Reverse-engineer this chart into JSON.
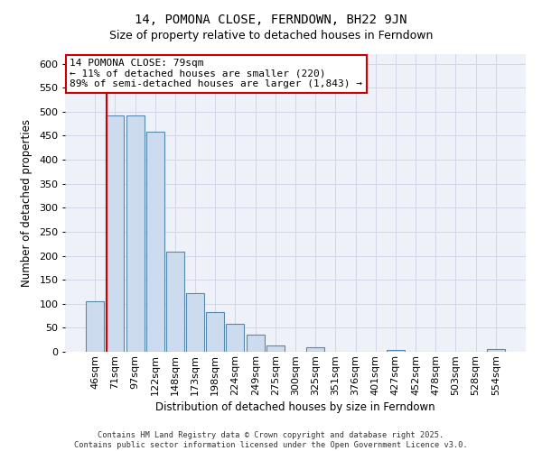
{
  "title": "14, POMONA CLOSE, FERNDOWN, BH22 9JN",
  "subtitle": "Size of property relative to detached houses in Ferndown",
  "xlabel": "Distribution of detached houses by size in Ferndown",
  "ylabel": "Number of detached properties",
  "bar_labels": [
    "46sqm",
    "71sqm",
    "97sqm",
    "122sqm",
    "148sqm",
    "173sqm",
    "198sqm",
    "224sqm",
    "249sqm",
    "275sqm",
    "300sqm",
    "325sqm",
    "351sqm",
    "376sqm",
    "401sqm",
    "427sqm",
    "452sqm",
    "478sqm",
    "503sqm",
    "528sqm",
    "554sqm"
  ],
  "bar_values": [
    105,
    493,
    492,
    458,
    208,
    123,
    82,
    58,
    36,
    14,
    0,
    10,
    0,
    0,
    0,
    4,
    0,
    0,
    0,
    0,
    5
  ],
  "bar_color": "#ccdcee",
  "bar_edge_color": "#5588aa",
  "vline_color": "#cc0000",
  "annotation_title": "14 POMONA CLOSE: 79sqm",
  "annotation_line1": "← 11% of detached houses are smaller (220)",
  "annotation_line2": "89% of semi-detached houses are larger (1,843) →",
  "annotation_box_facecolor": "#ffffff",
  "annotation_box_edgecolor": "#cc0000",
  "ylim": [
    0,
    620
  ],
  "yticks": [
    0,
    50,
    100,
    150,
    200,
    250,
    300,
    350,
    400,
    450,
    500,
    550,
    600
  ],
  "footer1": "Contains HM Land Registry data © Crown copyright and database right 2025.",
  "footer2": "Contains public sector information licensed under the Open Government Licence v3.0.",
  "plot_bg_color": "#eef2f8",
  "fig_bg_color": "#ffffff",
  "grid_color": "#d0d8e8"
}
